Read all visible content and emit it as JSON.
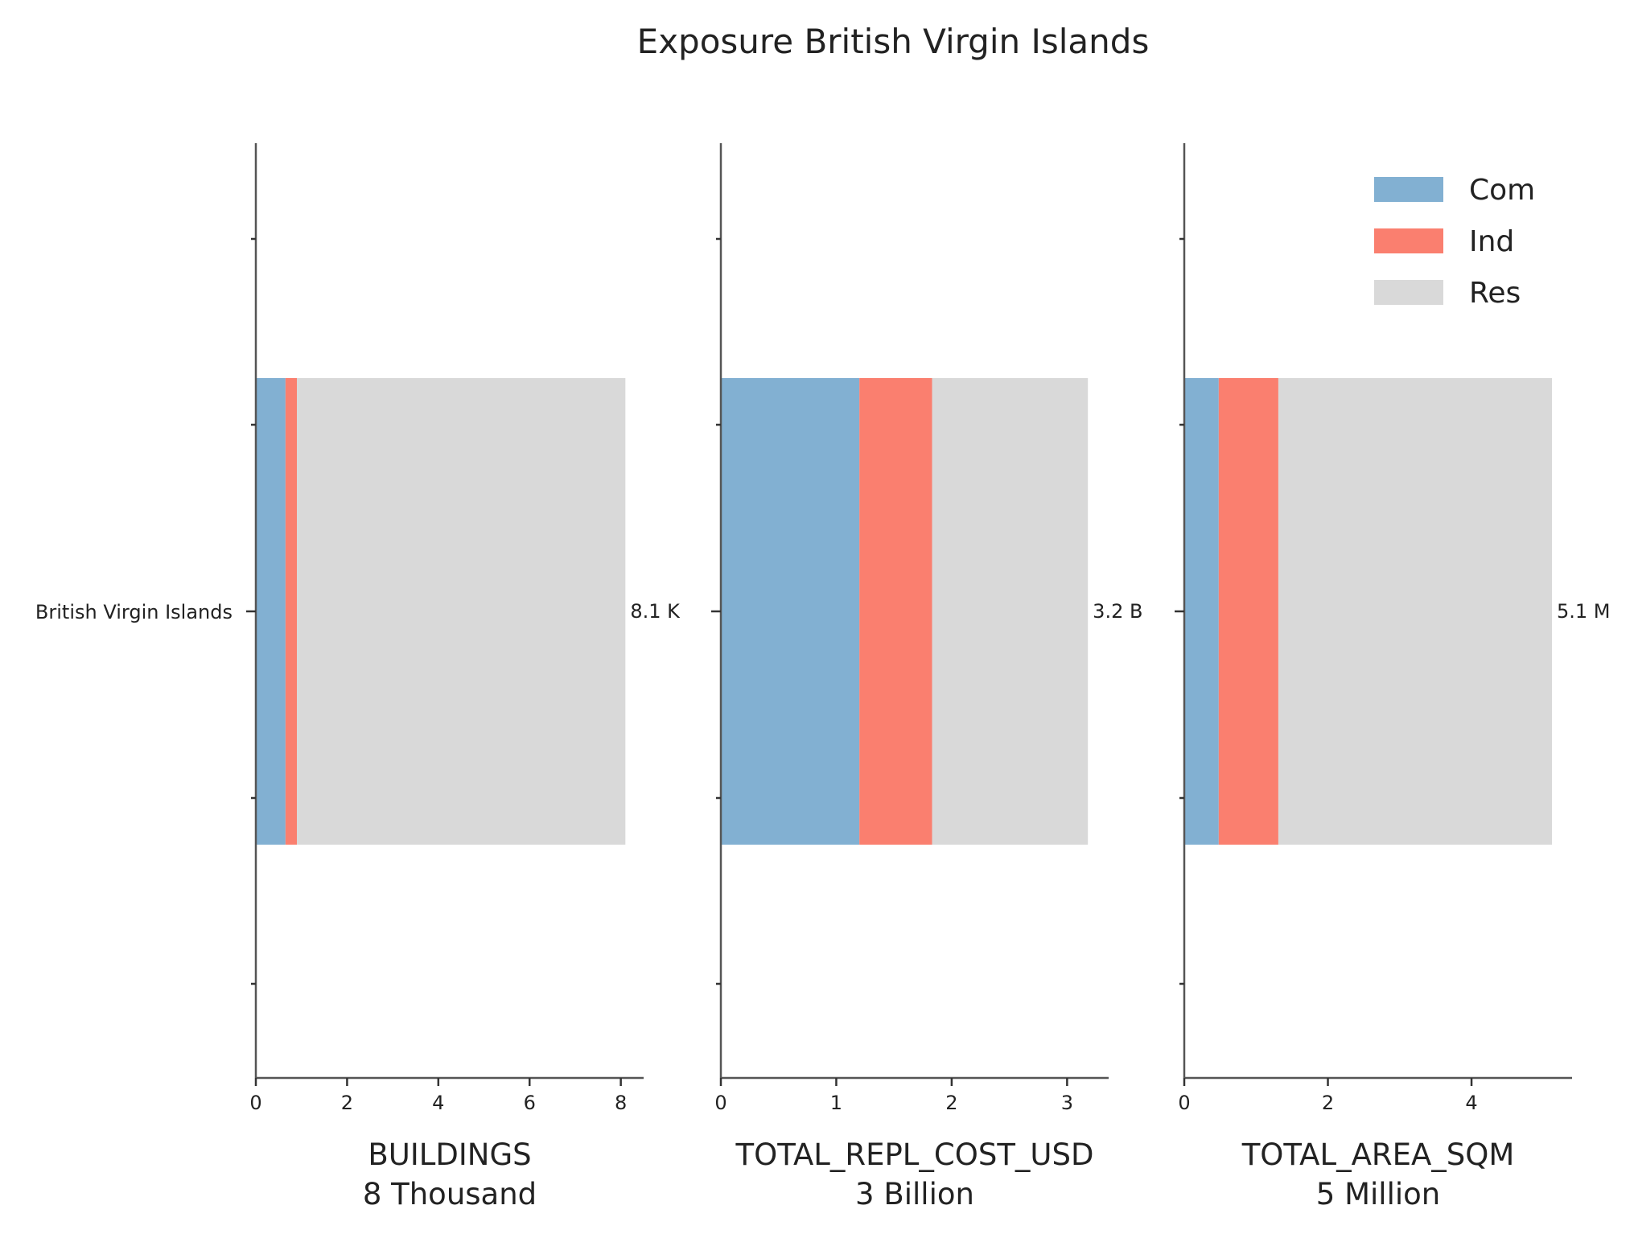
{
  "title": "Exposure British Virgin Islands",
  "category": "British Virgin Islands",
  "colors": {
    "Com": "#82b0d2",
    "Ind": "#fa7f6f",
    "Res": "#d9d9d9",
    "axis": "#555555"
  },
  "legend": {
    "placement": "top-right",
    "entries": [
      "Com",
      "Ind",
      "Res"
    ]
  },
  "chart_data": [
    {
      "type": "bar",
      "orientation": "horizontal",
      "stacked": true,
      "xlabel": "BUILDINGS",
      "unit_label": "8 Thousand",
      "total_label": "8.1 K",
      "categories": [
        "British Virgin Islands"
      ],
      "xlim": [
        0,
        8.5
      ],
      "xticks": [
        0,
        2,
        4,
        6,
        8
      ],
      "series": [
        {
          "name": "Com",
          "values": [
            0.65
          ]
        },
        {
          "name": "Ind",
          "values": [
            0.25
          ]
        },
        {
          "name": "Res",
          "values": [
            7.2
          ]
        }
      ]
    },
    {
      "type": "bar",
      "orientation": "horizontal",
      "stacked": true,
      "xlabel": "TOTAL_REPL_COST_USD",
      "unit_label": "3 Billion",
      "total_label": "3.2 B",
      "categories": [
        "British Virgin Islands"
      ],
      "xlim": [
        0,
        3.36
      ],
      "xticks": [
        0,
        1,
        2,
        3
      ],
      "series": [
        {
          "name": "Com",
          "values": [
            1.2
          ]
        },
        {
          "name": "Ind",
          "values": [
            0.63
          ]
        },
        {
          "name": "Res",
          "values": [
            1.35
          ]
        }
      ]
    },
    {
      "type": "bar",
      "orientation": "horizontal",
      "stacked": true,
      "xlabel": "TOTAL_AREA_SQM",
      "unit_label": "5 Million",
      "total_label": "5.1 M",
      "categories": [
        "British Virgin Islands"
      ],
      "xlim": [
        0,
        5.4
      ],
      "xticks": [
        0,
        2,
        4
      ],
      "series": [
        {
          "name": "Com",
          "values": [
            0.48
          ]
        },
        {
          "name": "Ind",
          "values": [
            0.83
          ]
        },
        {
          "name": "Res",
          "values": [
            3.81
          ]
        }
      ]
    }
  ]
}
